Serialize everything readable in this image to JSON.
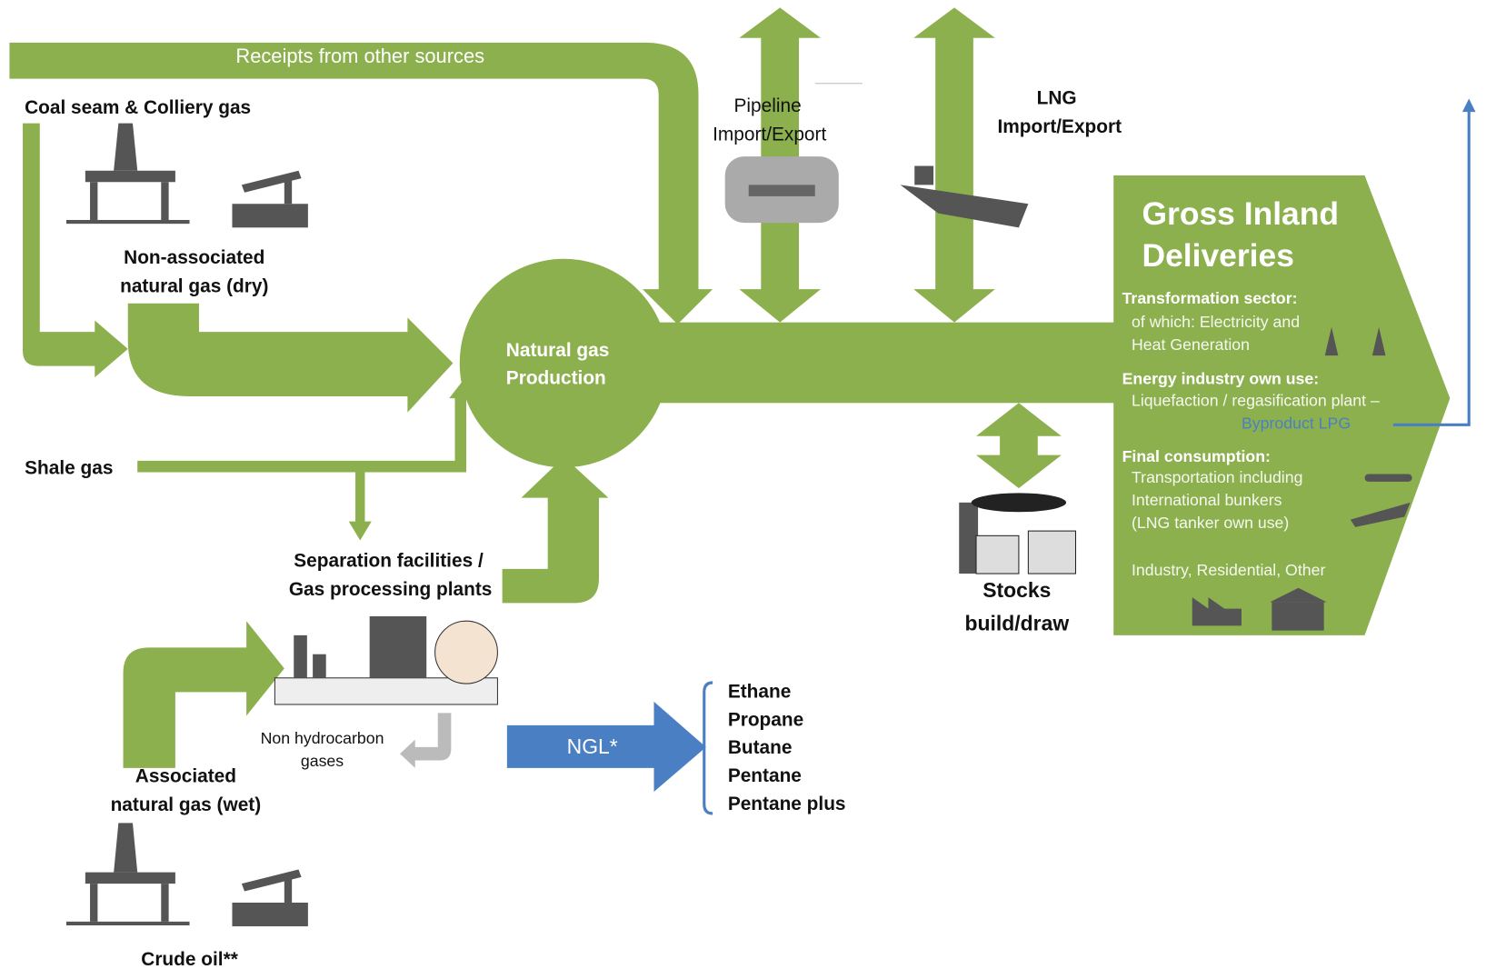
{
  "flows": {
    "receipts": "Receipts from other sources",
    "coal_seam": "Coal seam & Colliery gas",
    "non_associated": [
      "Non-associated",
      "natural gas (dry)"
    ],
    "shale": "Shale gas",
    "separation": [
      "Separation facilities /",
      "Gas processing plants"
    ],
    "non_hydrocarbon": [
      "Non hydrocarbon",
      "gases"
    ],
    "associated": [
      "Associated",
      "natural gas (wet)"
    ],
    "crude_oil": "Crude oil**",
    "pipeline": [
      "Pipeline",
      "Import/Export"
    ],
    "lng": [
      "LNG",
      "Import/Export"
    ],
    "stocks": [
      "Stocks",
      "build/draw"
    ],
    "ngl": "NGL*"
  },
  "production": [
    "Natural gas",
    "Production"
  ],
  "gross_inland": {
    "title": [
      "Gross Inland",
      "Deliveries"
    ],
    "sections": [
      {
        "heading": "Transformation sector:",
        "lines": [
          "of which: Electricity and",
          "Heat Generation"
        ]
      },
      {
        "heading": "Energy industry own use:",
        "lines": [
          "Liquefaction / regasification plant –"
        ]
      },
      {
        "heading": "Final consumption:",
        "lines": [
          "Transportation including",
          "International bunkers",
          "(LNG tanker own use)"
        ]
      }
    ],
    "byproduct": "Byproduct LPG",
    "other": "Industry, Residential, Other"
  },
  "ngl_products": [
    "Ethane",
    "Propane",
    "Butane",
    "Pentane",
    "Pentane plus"
  ]
}
